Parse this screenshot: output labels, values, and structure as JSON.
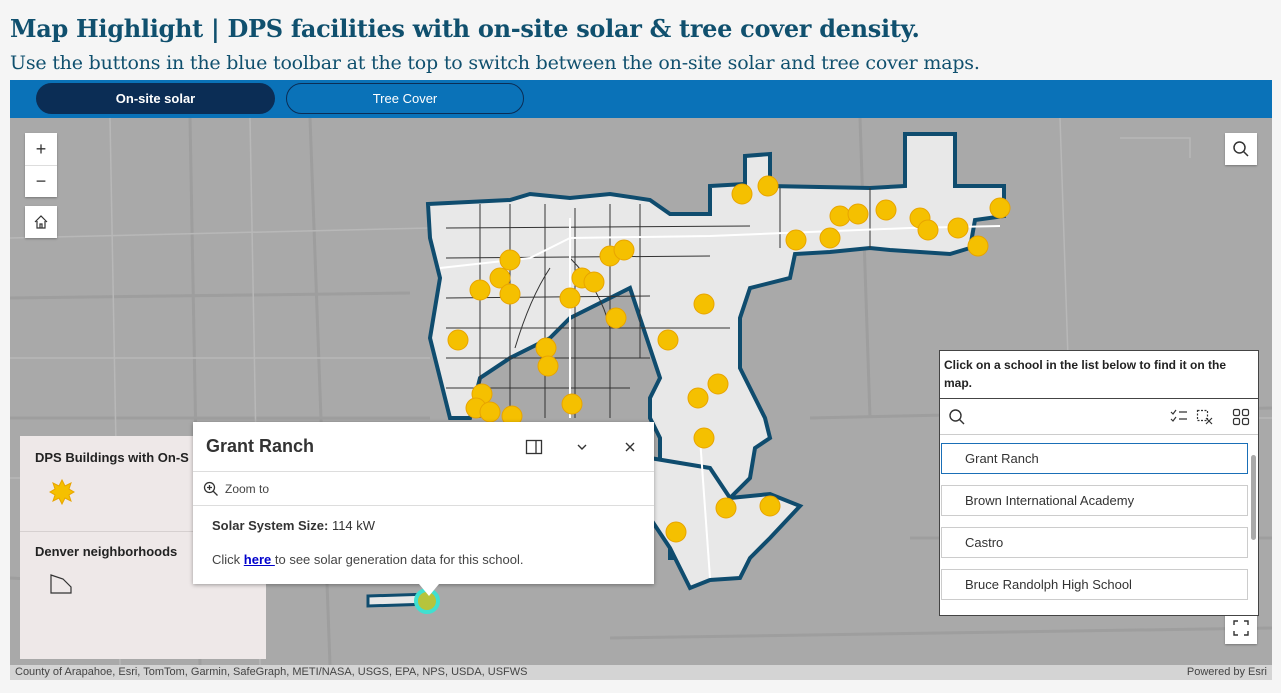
{
  "header": {
    "title": "Map Highlight | DPS facilities with on-site solar & tree cover density.",
    "subtitle": "Use the buttons in the blue toolbar at the top to switch between the on-site solar and tree cover maps."
  },
  "toolbar": {
    "tabs": [
      {
        "label": "On-site solar",
        "active": true
      },
      {
        "label": "Tree Cover",
        "active": false
      }
    ]
  },
  "map_controls": {
    "zoom_in": "+",
    "zoom_out": "−",
    "icons": [
      "home-icon",
      "search-icon",
      "fullscreen-icon"
    ]
  },
  "legend": {
    "layers": [
      {
        "title": "DPS Buildings with On-S",
        "symbol": "solar-star-icon"
      },
      {
        "title": "Denver neighborhoods",
        "symbol": "polygon-icon"
      }
    ]
  },
  "popup": {
    "title": "Grant Ranch",
    "zoom_to": "Zoom to",
    "field_label": "Solar System Size:",
    "field_value": " 114 kW",
    "text_before": "Click ",
    "link_text": "here ",
    "text_after": "to see solar generation data for this school."
  },
  "school_list": {
    "instruction": "Click on a school in the list below to find it on the map.",
    "items": [
      {
        "label": "Grant Ranch",
        "selected": true
      },
      {
        "label": "Brown International Academy",
        "selected": false
      },
      {
        "label": "Castro",
        "selected": false
      },
      {
        "label": "Bruce Randolph High School",
        "selected": false
      }
    ]
  },
  "attribution": {
    "sources": "County of Arapahoe, Esri, TomTom, Garmin, SafeGraph, METI/NASA, USGS, EPA, NPS, USDA, USFWS",
    "powered_by": "Powered by Esri"
  },
  "colors": {
    "title": "#10506e",
    "toolbar": "#0a72b8",
    "active_tab": "#0b2d55",
    "map_background": "#a9a9a9",
    "boundary": "#0f4c6e",
    "solar_marker": "#f5c000",
    "highlight": "#40e0d0"
  }
}
